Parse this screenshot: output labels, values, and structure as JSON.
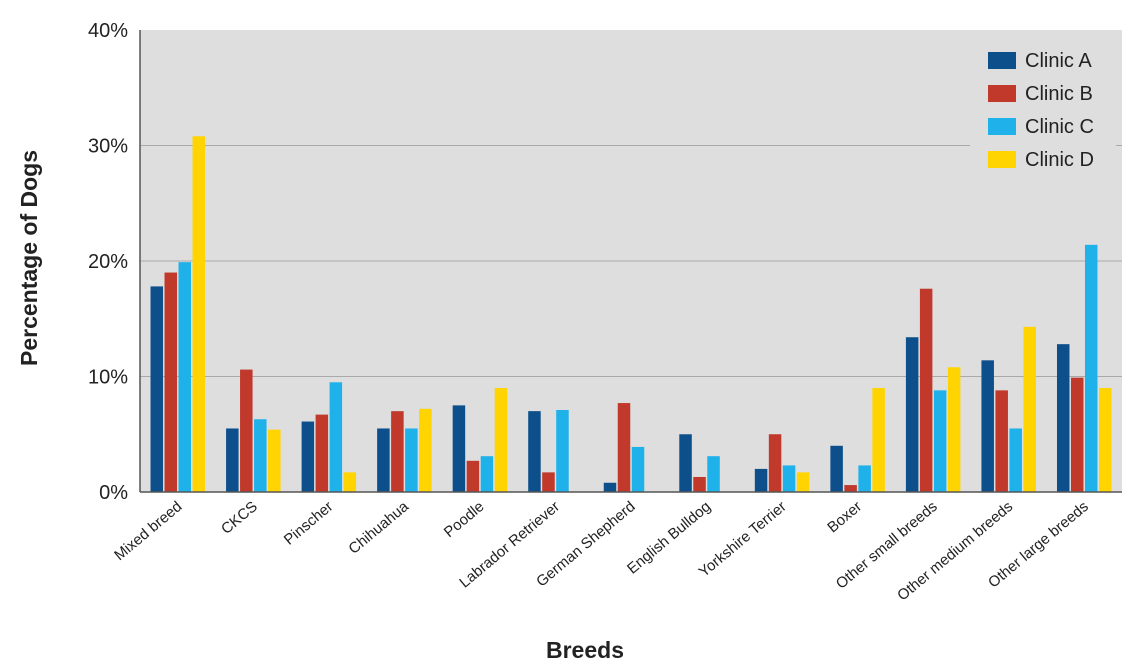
{
  "chart_data": {
    "type": "bar",
    "xlabel": "Breeds",
    "ylabel": "Percentage of Dogs",
    "ylim": [
      0,
      40
    ],
    "yticks": [
      "0%",
      "10%",
      "20%",
      "30%",
      "40%"
    ],
    "ytick_values": [
      0,
      10,
      20,
      30,
      40
    ],
    "grid": true,
    "legend_position": "top-right",
    "categories": [
      "Mixed breed",
      "CKCS",
      "Pinscher",
      "Chihuahua",
      "Poodle",
      "Labrador Retriever",
      "German Shepherd",
      "English Bulldog",
      "Yorkshire Terrier",
      "Boxer",
      "Other small breeds",
      "Other medium breeds",
      "Other large breeds"
    ],
    "series": [
      {
        "name": "Clinic A",
        "color": "#0d4f8b",
        "values": [
          17.8,
          5.5,
          6.1,
          5.5,
          7.5,
          7.0,
          0.8,
          5.0,
          2.0,
          4.0,
          13.4,
          11.4,
          12.8
        ]
      },
      {
        "name": "Clinic B",
        "color": "#c0392b",
        "values": [
          19.0,
          10.6,
          6.7,
          7.0,
          2.7,
          1.7,
          7.7,
          1.3,
          5.0,
          0.6,
          17.6,
          8.8,
          9.9
        ]
      },
      {
        "name": "Clinic C",
        "color": "#1fb1ea",
        "values": [
          19.9,
          6.3,
          9.5,
          5.5,
          3.1,
          7.1,
          3.9,
          3.1,
          2.3,
          2.3,
          8.8,
          5.5,
          21.4
        ]
      },
      {
        "name": "Clinic D",
        "color": "#ffd400",
        "values": [
          30.8,
          5.4,
          1.7,
          7.2,
          9.0,
          0,
          0,
          0,
          1.7,
          9.0,
          10.8,
          14.3,
          9.0
        ]
      }
    ]
  }
}
